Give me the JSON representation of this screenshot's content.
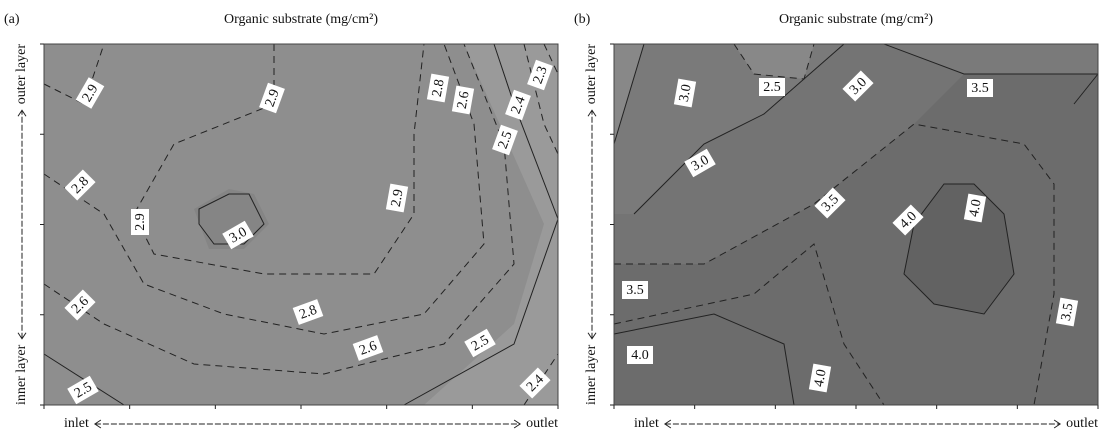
{
  "chart_data": [
    {
      "type": "contour",
      "panel_label": "(a)",
      "title": "Organic substrate (mg/cm²)",
      "x_label_start": "inlet",
      "x_label_end": "outlet",
      "y_label_start": "inner layer",
      "y_label_end": "outer layer",
      "contour_labels": [
        2.9,
        2.9,
        2.8,
        2.6,
        2.3,
        2.4,
        2.5,
        2.8,
        2.9,
        {
          "value": 3,
          "label": "3.0"
        },
        2.9,
        2.6,
        2.8,
        2.6,
        2.5,
        2.5,
        2.4
      ]
    },
    {
      "type": "contour",
      "panel_label": "(b)",
      "title": "Organic substrate (mg/cm²)",
      "x_label_start": "inlet",
      "x_label_end": "outlet",
      "y_label_start": "inner layer",
      "y_label_end": "outer layer",
      "contour_labels": [
        {
          "value": 3,
          "label": "3.0"
        },
        2.5,
        {
          "value": 3,
          "label": "3.0"
        },
        3.5,
        {
          "value": 3,
          "label": "3.0"
        },
        3.5,
        {
          "value": 4,
          "label": "4.0"
        },
        {
          "value": 4,
          "label": "4.0"
        },
        3.5,
        3.5,
        {
          "value": 4,
          "label": "4.0"
        },
        {
          "value": 4,
          "label": "4.0"
        }
      ]
    }
  ]
}
